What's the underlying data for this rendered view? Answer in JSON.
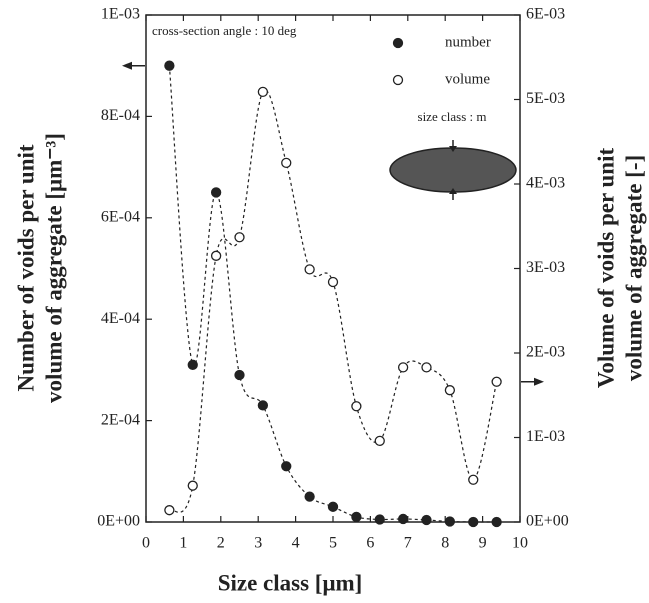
{
  "chart_data": {
    "type": "line",
    "annotation": "cross-section angle : 10 deg",
    "inset_label": "size class : m",
    "x_label": "Size class [μm]",
    "y_label": [
      "Number of voids per unit",
      "volume of aggregate [μm⁻³]"
    ],
    "y2_label": [
      "Volume of voids per unit",
      "volume of aggregate [-]"
    ],
    "x": [
      0.625,
      1.25,
      1.875,
      2.5,
      3.125,
      3.75,
      4.375,
      5.0,
      5.625,
      6.25,
      6.875,
      7.5,
      8.125,
      8.75,
      9.375
    ],
    "series": [
      {
        "name": "number",
        "color": "#222",
        "marker": "filled",
        "values": [
          0.0009,
          0.00031,
          0.00065,
          0.00029,
          0.00023,
          0.00011,
          5e-05,
          3e-05,
          1e-05,
          5e-06,
          6e-06,
          4e-06,
          1e-06,
          0,
          0
        ]
      },
      {
        "name": "volume",
        "color": "#222",
        "marker": "open",
        "axis": "y2",
        "values": [
          0.00014,
          0.00043,
          0.00315,
          0.00337,
          0.00509,
          0.00425,
          0.00299,
          0.00284,
          0.00137,
          0.00096,
          0.00183,
          0.00183,
          0.00156,
          0.0005,
          0.00166
        ]
      }
    ],
    "xlim": [
      0,
      10
    ],
    "xticks": [
      0,
      1,
      2,
      3,
      4,
      5,
      6,
      7,
      8,
      9,
      10
    ],
    "ylim": [
      0,
      0.001
    ],
    "yticks": [
      {
        "value": 0,
        "label": "0E+00"
      },
      {
        "value": 0.0002,
        "label": "2E-04"
      },
      {
        "value": 0.0004,
        "label": "4E-04"
      },
      {
        "value": 0.0006,
        "label": "6E-04"
      },
      {
        "value": 0.0008,
        "label": "8E-04"
      },
      {
        "value": 0.001,
        "label": "1E-03"
      }
    ],
    "y2lim": [
      0,
      0.006
    ],
    "y2ticks": [
      {
        "value": 0,
        "label": "0E+00"
      },
      {
        "value": 0.001,
        "label": "1E-03"
      },
      {
        "value": 0.002,
        "label": "2E-03"
      },
      {
        "value": 0.003,
        "label": "3E-03"
      },
      {
        "value": 0.004,
        "label": "4E-03"
      },
      {
        "value": 0.005,
        "label": "5E-03"
      },
      {
        "value": 0.006,
        "label": "6E-03"
      }
    ],
    "grid": false
  }
}
